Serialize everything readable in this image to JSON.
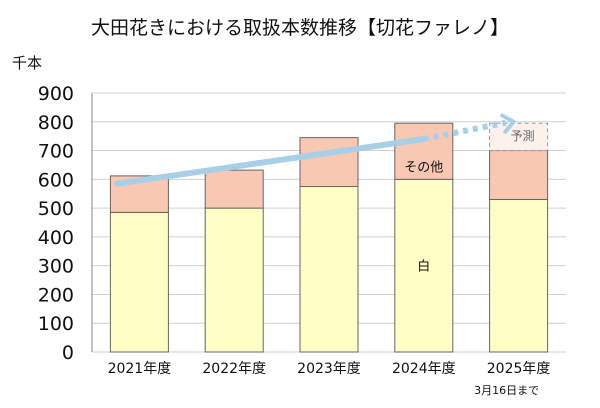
{
  "chart_data": {
    "type": "bar",
    "stacked": true,
    "title": "大田花きにおける取扱本数推移【切花ファレノ】",
    "ylabel": "千本",
    "ylim": [
      0,
      900
    ],
    "yticks": [
      0,
      100,
      200,
      300,
      400,
      500,
      600,
      700,
      800,
      900
    ],
    "grid": true,
    "categories": [
      "2021年度",
      "2022年度",
      "2023年度",
      "2024年度",
      "2025年度"
    ],
    "category_note": {
      "index": 4,
      "text": "3月16日まで"
    },
    "series": [
      {
        "name": "白",
        "values": [
          485,
          500,
          575,
          600,
          530
        ],
        "color": "#ffffc5"
      },
      {
        "name": "その他",
        "values": [
          127,
          132,
          170,
          195,
          170
        ],
        "color": "#f8c8b2"
      }
    ],
    "forecast": {
      "label": "予測",
      "category_index": 4,
      "from": 700,
      "to": 795,
      "color": "#fdf1ec"
    },
    "trend_arrow": {
      "color": "#a7d0e6",
      "start": {
        "category_index": 0,
        "value": 585
      },
      "solid_end": {
        "category_index": 3,
        "value": 740
      },
      "end": {
        "category_index": 4,
        "value": 800
      }
    }
  },
  "colors": {
    "border": "#666666",
    "grid": "#d0d0d0",
    "axis": "#888888"
  }
}
